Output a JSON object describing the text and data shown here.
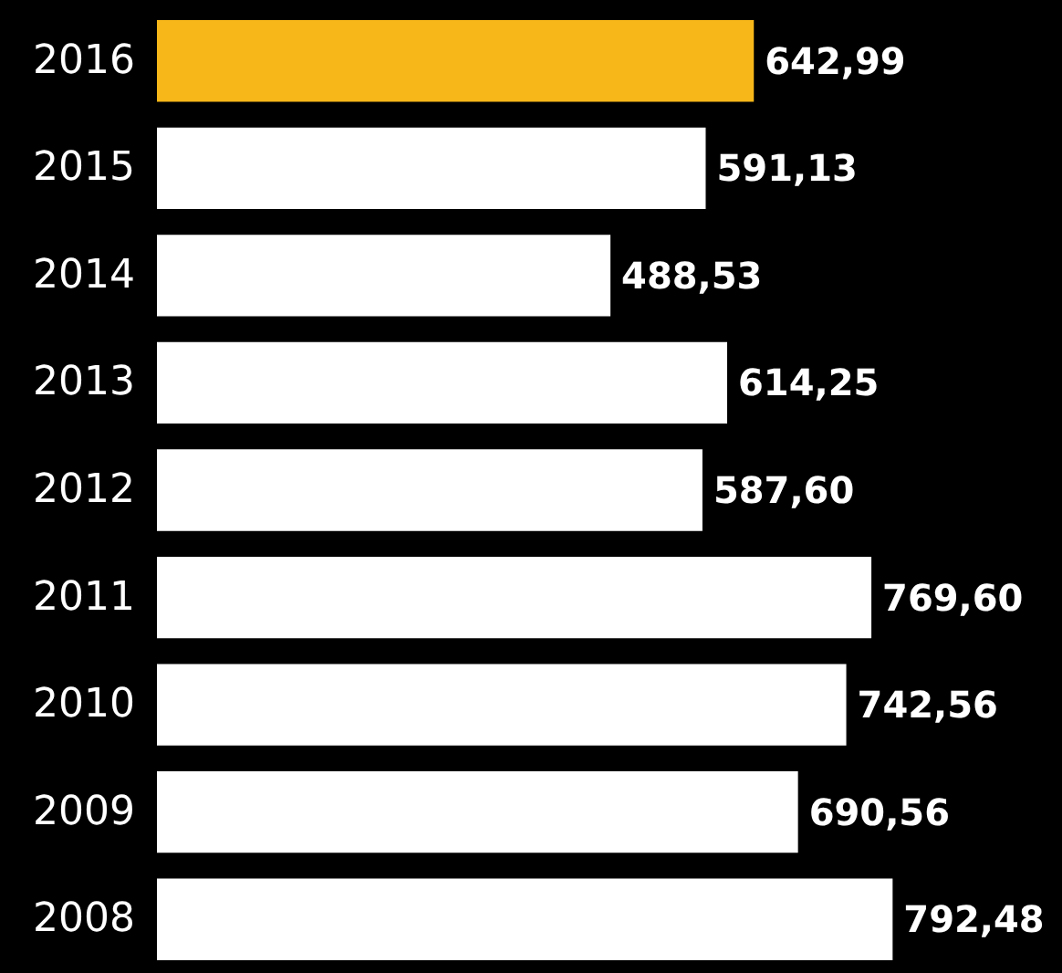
{
  "chart_data": {
    "type": "bar",
    "orientation": "horizontal",
    "categories": [
      "2016",
      "2015",
      "2014",
      "2013",
      "2012",
      "2011",
      "2010",
      "2009",
      "2008"
    ],
    "values": [
      642.99,
      591.13,
      488.53,
      614.25,
      587.6,
      769.6,
      742.56,
      690.56,
      792.48
    ],
    "colors": [
      "#f7b718",
      "#ffffff",
      "#ffffff",
      "#ffffff",
      "#ffffff",
      "#ffffff",
      "#ffffff",
      "#ffffff",
      "#ffffff"
    ],
    "value_labels": [
      "642,99",
      "591,13",
      "488,53",
      "614,25",
      "587,60",
      "769,60",
      "742,56",
      "690,56",
      "792,48"
    ]
  }
}
